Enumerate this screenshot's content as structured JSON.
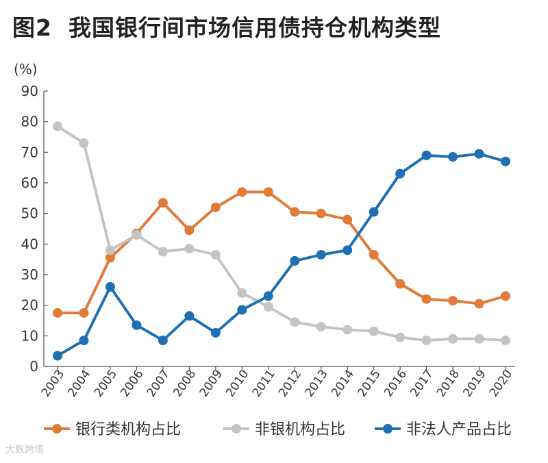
{
  "title": {
    "figure_label": "图2",
    "text": "我国银行间市场信用债持仓机构类型"
  },
  "watermark": "大数跨境",
  "chart_data": {
    "type": "line",
    "title": "我国银行间市场信用债持仓机构类型",
    "ylabel": "(%)",
    "xlabel": "",
    "ylim": [
      0,
      90
    ],
    "yticks": [
      0,
      10,
      20,
      30,
      40,
      50,
      60,
      70,
      80,
      90
    ],
    "grid": false,
    "legend_position": "bottom",
    "categories": [
      "2003",
      "2004",
      "2005",
      "2006",
      "2007",
      "2008",
      "2009",
      "2010",
      "2011",
      "2012",
      "2013",
      "2014",
      "2015",
      "2016",
      "2017",
      "2018",
      "2019",
      "2020"
    ],
    "series": [
      {
        "name": "银行类机构占比",
        "color": "#e07b39",
        "values": [
          17.5,
          17.5,
          35.5,
          43.5,
          53.5,
          44.5,
          52,
          57,
          57,
          50.5,
          50,
          48,
          36.5,
          27,
          22,
          21.5,
          20.5,
          23
        ]
      },
      {
        "name": "非银机构占比",
        "color": "#c4c4c4",
        "values": [
          78.5,
          73,
          38,
          43,
          37.5,
          38.5,
          36.5,
          24,
          19.5,
          14.5,
          13,
          12,
          11.5,
          9.5,
          8.5,
          9,
          9,
          8.5
        ]
      },
      {
        "name": "非法人产品占比",
        "color": "#1f6fb2",
        "values": [
          3.5,
          8.5,
          26,
          13.5,
          8.5,
          16.5,
          11,
          18.5,
          23,
          34.5,
          36.5,
          38,
          50.5,
          63,
          69,
          68.5,
          69.5,
          67
        ]
      }
    ]
  }
}
